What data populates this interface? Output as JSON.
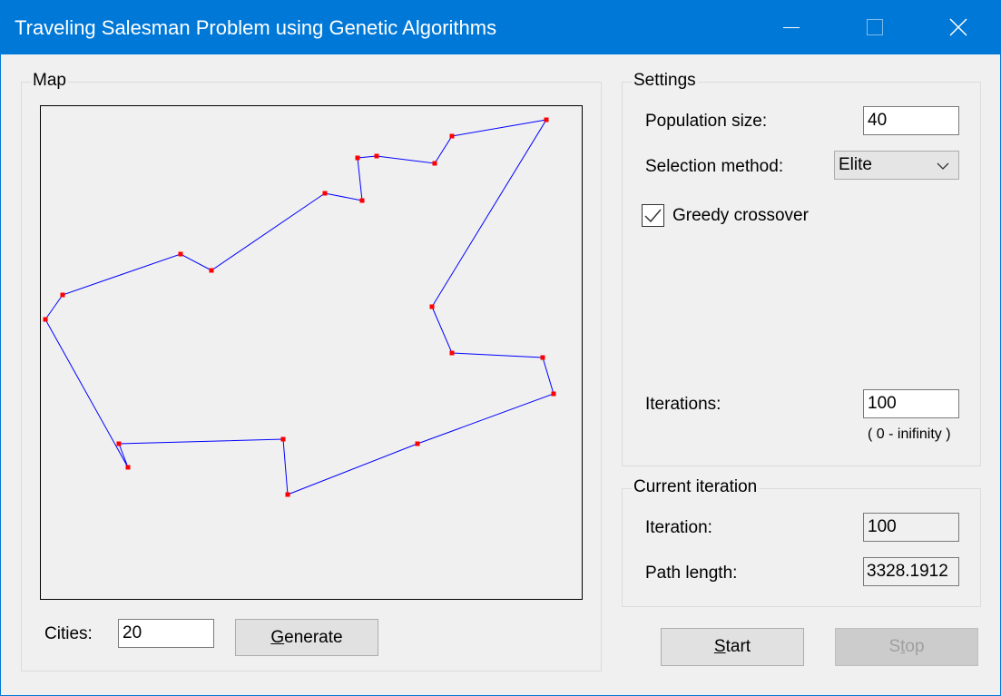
{
  "window": {
    "title": "Traveling Salesman Problem using Genetic Algorithms",
    "minimize_icon": "minimize-icon",
    "maximize_icon": "maximize-icon",
    "close_icon": "close-icon"
  },
  "map": {
    "legend": "Map",
    "path_color": "#0000ff",
    "city_color": "#ff0000",
    "cities_in_tour_order": [
      [
        557,
        15
      ],
      [
        453,
        33
      ],
      [
        434,
        63
      ],
      [
        370,
        55
      ],
      [
        349,
        57
      ],
      [
        354,
        104
      ],
      [
        313,
        96
      ],
      [
        188,
        181
      ],
      [
        154,
        163
      ],
      [
        24,
        208
      ],
      [
        5,
        235
      ],
      [
        96,
        398
      ],
      [
        86,
        372
      ],
      [
        267,
        367
      ],
      [
        272,
        428
      ],
      [
        415,
        372
      ],
      [
        565,
        317
      ],
      [
        553,
        277
      ],
      [
        453,
        272
      ],
      [
        431,
        221
      ]
    ],
    "cities_label": "Cities:",
    "cities_value": "20",
    "generate_pre": "",
    "generate_mn": "G",
    "generate_post": "enerate"
  },
  "settings": {
    "legend": "Settings",
    "population_label": "Population size:",
    "population_value": "40",
    "selection_label": "Selection method:",
    "selection_value": "Elite",
    "greedy_label": "Greedy crossover",
    "greedy_checked": true,
    "iterations_label": "Iterations:",
    "iterations_value": "100",
    "iterations_hint": "( 0 - inifinity )"
  },
  "current": {
    "legend": "Current iteration",
    "iteration_label": "Iteration:",
    "iteration_value": "100",
    "path_label": "Path length:",
    "path_value": "3328.1912"
  },
  "controls": {
    "start_mn": "S",
    "start_post": "tart",
    "stop_pre": "S",
    "stop_mn": "t",
    "stop_post": "op"
  }
}
